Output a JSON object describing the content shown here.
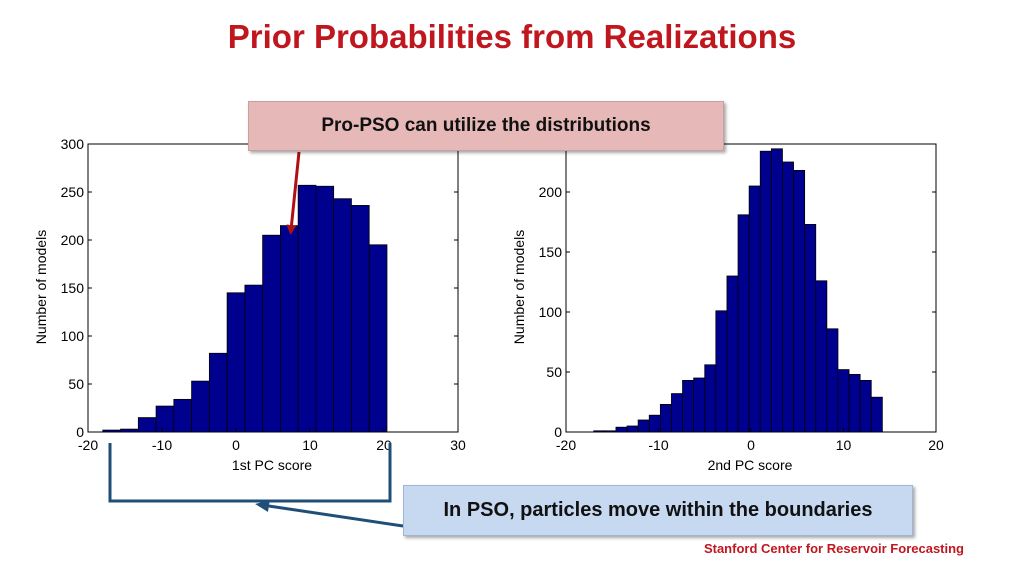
{
  "slide": {
    "title": "Prior Probabilities from Realizations",
    "callout_top": "Pro-PSO can utilize the distributions",
    "callout_bottom": "In PSO, particles move within the boundaries",
    "footer": "Stanford Center for Reservoir Forecasting"
  },
  "colors": {
    "title": "#c0171f",
    "bar_fill": "#00008f",
    "bar_stroke": "#000000",
    "arrow_red": "#b01010",
    "bracket_blue": "#1f4e79",
    "callout_top_bg": "#e6b9b8",
    "callout_bottom_bg": "#c6d9f1"
  },
  "chart_data": [
    {
      "type": "bar",
      "subtype": "histogram",
      "xlabel": "1st PC score",
      "ylabel": "Number of models",
      "xlim": [
        -20,
        30
      ],
      "ylim": [
        0,
        300
      ],
      "xticks": [
        -20,
        -10,
        0,
        10,
        20,
        30
      ],
      "yticks": [
        0,
        50,
        100,
        150,
        200,
        250,
        300
      ],
      "grid": false,
      "bin_width": 2.4,
      "bin_centers": [
        -16.8,
        -14.4,
        -12.0,
        -9.6,
        -7.2,
        -4.8,
        -2.4,
        0.0,
        2.4,
        4.8,
        7.2,
        9.6,
        12.0,
        14.4,
        16.8,
        19.2
      ],
      "counts": [
        2,
        3,
        15,
        27,
        34,
        53,
        82,
        145,
        153,
        205,
        215,
        257,
        256,
        243,
        236,
        195
      ]
    },
    {
      "type": "bar",
      "subtype": "histogram",
      "xlabel": "2nd PC score",
      "ylabel": "Number of models",
      "xlim": [
        -20,
        20
      ],
      "ylim": [
        0,
        240
      ],
      "xticks": [
        -20,
        -10,
        0,
        10,
        20
      ],
      "yticks": [
        0,
        50,
        100,
        150,
        200
      ],
      "grid": false,
      "bin_width": 1.2,
      "bin_centers": [
        -16.4,
        -15.2,
        -14.0,
        -12.8,
        -11.6,
        -10.4,
        -9.2,
        -8.0,
        -6.8,
        -5.6,
        -4.4,
        -3.2,
        -2.0,
        -0.8,
        0.4,
        1.6,
        2.8,
        4.0,
        5.2,
        6.4,
        7.6,
        8.8,
        10.0,
        11.2,
        12.4,
        13.6
      ],
      "counts": [
        1,
        1,
        4,
        5,
        10,
        14,
        23,
        32,
        43,
        45,
        56,
        101,
        130,
        181,
        205,
        234,
        236,
        225,
        218,
        173,
        126,
        86,
        52,
        48,
        43,
        29
      ]
    }
  ]
}
